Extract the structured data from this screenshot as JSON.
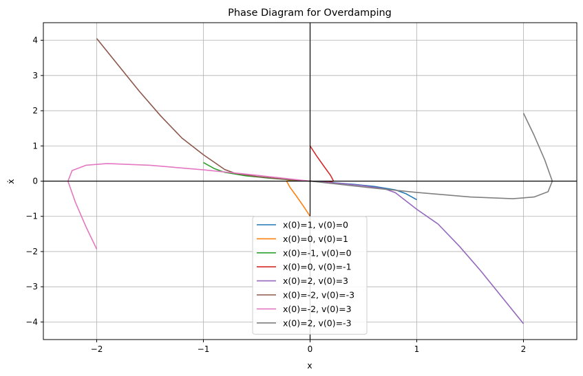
{
  "chart_data": {
    "type": "line",
    "title": "Phase Diagram for Overdamping",
    "xlabel": "x",
    "ylabel": "ẋ",
    "xlim": [
      -2.5,
      2.5
    ],
    "ylim": [
      -4.5,
      4.5
    ],
    "xticks": [
      -2,
      -1,
      0,
      1,
      2
    ],
    "xtick_labels": [
      "−2",
      "−1",
      "0",
      "1",
      "2"
    ],
    "yticks": [
      -4,
      -3,
      -2,
      -1,
      0,
      1,
      2,
      3,
      4
    ],
    "ytick_labels": [
      "−4",
      "−3",
      "−2",
      "−1",
      "0",
      "1",
      "2",
      "3",
      "4"
    ],
    "grid": true,
    "legend_position": "bottom-center",
    "series": [
      {
        "name": "x(0)=1, v(0)=0",
        "color": "#1f77b4",
        "points": [
          [
            1.0,
            -0.53
          ],
          [
            0.9,
            -0.36
          ],
          [
            0.8,
            -0.25
          ],
          [
            0.6,
            -0.15
          ],
          [
            0.4,
            -0.09
          ],
          [
            0.2,
            -0.04
          ],
          [
            0.0,
            0.0
          ]
        ]
      },
      {
        "name": "x(0)=0, v(0)=1",
        "color": "#ff7f0e",
        "points": [
          [
            0.0,
            -1.0
          ],
          [
            -0.06,
            -0.72
          ],
          [
            -0.13,
            -0.42
          ],
          [
            -0.19,
            -0.17
          ],
          [
            -0.22,
            0.0
          ],
          [
            -0.18,
            0.03
          ],
          [
            -0.1,
            0.02
          ],
          [
            0.0,
            0.0
          ]
        ]
      },
      {
        "name": "x(0)=-1, v(0)=0",
        "color": "#2ca02c",
        "points": [
          [
            -1.0,
            0.53
          ],
          [
            -0.9,
            0.36
          ],
          [
            -0.8,
            0.25
          ],
          [
            -0.6,
            0.15
          ],
          [
            -0.4,
            0.09
          ],
          [
            -0.2,
            0.04
          ],
          [
            0.0,
            0.0
          ]
        ]
      },
      {
        "name": "x(0)=0, v(0)=-1",
        "color": "#d62728",
        "points": [
          [
            0.0,
            1.0
          ],
          [
            0.06,
            0.72
          ],
          [
            0.13,
            0.42
          ],
          [
            0.19,
            0.17
          ],
          [
            0.22,
            0.0
          ],
          [
            0.18,
            -0.03
          ],
          [
            0.1,
            -0.02
          ],
          [
            0.0,
            0.0
          ]
        ]
      },
      {
        "name": "x(0)=2, v(0)=3",
        "color": "#9467bd",
        "points": [
          [
            2.0,
            -4.05
          ],
          [
            1.8,
            -3.3
          ],
          [
            1.6,
            -2.55
          ],
          [
            1.4,
            -1.85
          ],
          [
            1.2,
            -1.22
          ],
          [
            1.0,
            -0.8
          ],
          [
            0.8,
            -0.33
          ],
          [
            0.7,
            -0.22
          ],
          [
            0.5,
            -0.13
          ],
          [
            0.3,
            -0.07
          ],
          [
            0.0,
            0.0
          ]
        ]
      },
      {
        "name": "x(0)=-2, v(0)=-3",
        "color": "#8c564b",
        "points": [
          [
            -2.0,
            4.05
          ],
          [
            -1.8,
            3.3
          ],
          [
            -1.6,
            2.55
          ],
          [
            -1.4,
            1.85
          ],
          [
            -1.2,
            1.22
          ],
          [
            -1.0,
            0.75
          ],
          [
            -0.8,
            0.33
          ],
          [
            -0.7,
            0.22
          ],
          [
            -0.5,
            0.13
          ],
          [
            -0.3,
            0.07
          ],
          [
            0.0,
            0.0
          ]
        ]
      },
      {
        "name": "x(0)=-2, v(0)=3",
        "color": "#e377c2",
        "points": [
          [
            -2.0,
            -1.93
          ],
          [
            -2.1,
            -1.3
          ],
          [
            -2.2,
            -0.6
          ],
          [
            -2.27,
            0.0
          ],
          [
            -2.23,
            0.3
          ],
          [
            -2.1,
            0.45
          ],
          [
            -1.9,
            0.5
          ],
          [
            -1.5,
            0.45
          ],
          [
            -1.0,
            0.32
          ],
          [
            -0.6,
            0.2
          ],
          [
            -0.3,
            0.1
          ],
          [
            0.0,
            0.0
          ]
        ]
      },
      {
        "name": "x(0)=2, v(0)=-3",
        "color": "#7f7f7f",
        "points": [
          [
            2.0,
            1.93
          ],
          [
            2.1,
            1.3
          ],
          [
            2.2,
            0.6
          ],
          [
            2.27,
            0.0
          ],
          [
            2.23,
            -0.3
          ],
          [
            2.1,
            -0.45
          ],
          [
            1.9,
            -0.5
          ],
          [
            1.5,
            -0.45
          ],
          [
            1.0,
            -0.32
          ],
          [
            0.6,
            -0.2
          ],
          [
            0.3,
            -0.1
          ],
          [
            0.0,
            0.0
          ]
        ]
      }
    ]
  }
}
